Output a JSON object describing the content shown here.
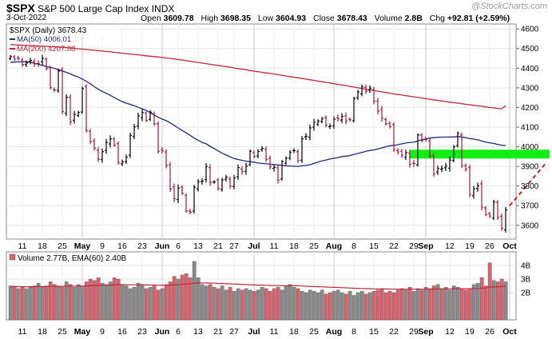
{
  "header": {
    "symbol": "$SPX",
    "name": "S&P 500 Large Cap Index",
    "exchange": "INDX",
    "date": "3-Oct-2022",
    "open_label": "Open",
    "open": "3609.78",
    "high_label": "High",
    "high": "3698.35",
    "low_label": "Low",
    "low": "3604.93",
    "close_label": "Close",
    "close": "3678.43",
    "volume_label": "Volume",
    "volume": "2.8B",
    "chg_label": "Chg",
    "chg": "+92.81 (+2.59%)",
    "watermark": "@StockCharts.com"
  },
  "legend": {
    "price": "$SPX (Daily) 3678.43",
    "ma50": "MA(50) 4006.01",
    "ma200": "MA(200) 4207.88",
    "volume": "Volume 2.77B, EMA(60) 2.40B"
  },
  "chart_data": {
    "type": "ohlc",
    "colors": {
      "up": "#000000",
      "down": "#a8163c",
      "ma50": "#1f2a80",
      "ma200": "#c0263a",
      "vol_up": "#8a8a8a",
      "vol_down": "#d9626e",
      "support": "#11ee11",
      "trend": "#e8141e"
    },
    "price_axis": {
      "min": 3530,
      "max": 4625,
      "ticks": [
        3600,
        3700,
        3800,
        3900,
        4000,
        4100,
        4200,
        4300,
        4400,
        4500,
        4600
      ]
    },
    "volume_axis": {
      "min": 0,
      "max": 5,
      "ticks": [
        "2B",
        "3B",
        "4B"
      ],
      "tick_values": [
        2,
        3,
        4
      ]
    },
    "x_labels": [
      {
        "label": "11",
        "i": 3
      },
      {
        "label": "18",
        "i": 8
      },
      {
        "label": "25",
        "i": 13
      },
      {
        "label": "May",
        "i": 18,
        "bold": true
      },
      {
        "label": "9",
        "i": 23
      },
      {
        "label": "16",
        "i": 28
      },
      {
        "label": "23",
        "i": 33
      },
      {
        "label": "Jun",
        "i": 38,
        "bold": true
      },
      {
        "label": "6",
        "i": 42
      },
      {
        "label": "13",
        "i": 47
      },
      {
        "label": "21",
        "i": 52
      },
      {
        "label": "27",
        "i": 56
      },
      {
        "label": "Jul",
        "i": 61,
        "bold": true
      },
      {
        "label": "11",
        "i": 66
      },
      {
        "label": "18",
        "i": 71
      },
      {
        "label": "25",
        "i": 76
      },
      {
        "label": "Aug",
        "i": 81,
        "bold": true
      },
      {
        "label": "8",
        "i": 86
      },
      {
        "label": "15",
        "i": 91
      },
      {
        "label": "22",
        "i": 96
      },
      {
        "label": "29",
        "i": 101
      },
      {
        "label": "Sep",
        "i": 104,
        "bold": true
      },
      {
        "label": "12",
        "i": 110
      },
      {
        "label": "19",
        "i": 115
      },
      {
        "label": "26",
        "i": 120
      },
      {
        "label": "Oct",
        "i": 125,
        "bold": true
      }
    ],
    "close": [
      4459,
      4446,
      4449,
      4419,
      4426,
      4439,
      4422,
      4423,
      4450,
      4398,
      4301,
      4289,
      4385,
      4179,
      4252,
      4127,
      4165,
      4175,
      4297,
      4083,
      4026,
      3993,
      3936,
      3975,
      4022,
      4040,
      4008,
      3919,
      3923,
      3947,
      4057,
      4101,
      4157,
      4174,
      4134,
      4176,
      4117,
      3977,
      3979,
      3905,
      3786,
      3735,
      3790,
      3763,
      3674,
      3667,
      3794,
      3822,
      3825,
      3900,
      3818,
      3821,
      3786,
      3831,
      3845,
      3800,
      3841,
      3894,
      3875,
      3901,
      3977,
      3951,
      3976,
      3991,
      3936,
      3900,
      3895,
      3830,
      3924,
      3942,
      3972,
      3980,
      3930,
      4040,
      4053,
      4096,
      4124,
      4131,
      4142,
      4110,
      4106,
      4140,
      4142,
      4155,
      4131,
      4137,
      4245,
      4279,
      4305,
      4283,
      4298,
      4232,
      4182,
      4145,
      4117,
      4103,
      3985,
      3973,
      3957,
      3970,
      3910,
      3915,
      4060,
      4032,
      4036,
      3952,
      3861,
      3890,
      3889,
      3901,
      3932,
      4000,
      4068,
      3903,
      3886,
      3757,
      3785,
      3801,
      3693,
      3655,
      3647,
      3719,
      3640,
      3585,
      3678
    ],
    "ohlc_order": "open, high, low, close per bar",
    "ma50": [
      4430,
      4431,
      4432,
      4432,
      4433,
      4430,
      4425,
      4420,
      4414,
      4408,
      4404,
      4399,
      4393,
      4385,
      4379,
      4371,
      4362,
      4355,
      4345,
      4333,
      4321,
      4306,
      4293,
      4282,
      4272,
      4262,
      4251,
      4240,
      4229,
      4222,
      4216,
      4209,
      4201,
      4193,
      4185,
      4174,
      4161,
      4150,
      4141,
      4133,
      4122,
      4109,
      4096,
      4083,
      4071,
      4058,
      4044,
      4033,
      4022,
      4015,
      4002,
      3991,
      3979,
      3967,
      3958,
      3949,
      3940,
      3935,
      3931,
      3927,
      3924,
      3921,
      3917,
      3915,
      3913,
      3911,
      3909,
      3908,
      3905,
      3903,
      3902,
      3901,
      3900,
      3903,
      3905,
      3908,
      3915,
      3922,
      3928,
      3932,
      3938,
      3941,
      3945,
      3950,
      3952,
      3955,
      3961,
      3966,
      3971,
      3977,
      3981,
      3984,
      3989,
      3994,
      4000,
      4005,
      4007,
      4010,
      4015,
      4019,
      4022,
      4023,
      4029,
      4035,
      4040,
      4044,
      4046,
      4048,
      4049,
      4049,
      4050,
      4050,
      4052,
      4050,
      4046,
      4042,
      4039,
      4035,
      4029,
      4024,
      4020,
      4017,
      4012,
      4008,
      4006
    ],
    "ma200": [
      4520,
      4519,
      4518,
      4517,
      4516,
      4515,
      4514,
      4513,
      4512,
      4511,
      4510,
      4509,
      4508,
      4506,
      4505,
      4503,
      4501,
      4499,
      4497,
      4495,
      4493,
      4491,
      4489,
      4487,
      4485,
      4483,
      4481,
      4479,
      4476,
      4474,
      4472,
      4470,
      4468,
      4466,
      4463,
      4461,
      4459,
      4457,
      4455,
      4452,
      4450,
      4447,
      4444,
      4441,
      4438,
      4435,
      4432,
      4429,
      4426,
      4423,
      4420,
      4417,
      4414,
      4411,
      4408,
      4405,
      4401,
      4398,
      4395,
      4392,
      4388,
      4385,
      4382,
      4379,
      4376,
      4373,
      4370,
      4367,
      4364,
      4360,
      4357,
      4354,
      4351,
      4348,
      4344,
      4341,
      4338,
      4334,
      4331,
      4328,
      4325,
      4321,
      4318,
      4314,
      4311,
      4307,
      4304,
      4300,
      4297,
      4293,
      4290,
      4286,
      4283,
      4279,
      4276,
      4273,
      4269,
      4266,
      4263,
      4260,
      4257,
      4254,
      4251,
      4248,
      4245,
      4242,
      4239,
      4236,
      4233,
      4230,
      4227,
      4224,
      4222,
      4219,
      4216,
      4214,
      4211,
      4208,
      4206,
      4203,
      4200,
      4198,
      4195,
      4193,
      4208
    ],
    "volume_b": [
      2.5,
      2.4,
      2.3,
      2.4,
      2.3,
      2.4,
      2.5,
      2.7,
      2.4,
      2.5,
      2.8,
      2.6,
      2.5,
      2.4,
      2.8,
      2.6,
      2.4,
      2.6,
      2.5,
      2.8,
      3.0,
      2.9,
      3.1,
      2.7,
      2.6,
      2.8,
      3.1,
      3.0,
      2.6,
      2.5,
      2.3,
      2.4,
      2.7,
      2.6,
      2.3,
      2.4,
      2.5,
      2.2,
      2.3,
      2.6,
      2.8,
      3.2,
      3.0,
      3.3,
      3.4,
      3.1,
      4.3,
      3.1,
      2.6,
      2.5,
      2.6,
      2.4,
      2.3,
      2.5,
      2.2,
      2.4,
      2.1,
      2.3,
      2.2,
      2.3,
      2.2,
      2.1,
      2.2,
      2.4,
      2.3,
      2.1,
      2.3,
      2.4,
      2.2,
      2.5,
      2.6,
      2.4,
      2.3,
      2.1,
      2.0,
      2.2,
      2.1,
      2.0,
      2.2,
      1.9,
      2.0,
      2.1,
      2.2,
      2.0,
      1.9,
      2.1,
      1.8,
      2.0,
      2.1,
      1.9,
      2.0,
      2.1,
      2.2,
      2.3,
      2.0,
      2.1,
      2.0,
      2.2,
      2.3,
      2.2,
      2.4,
      2.1,
      2.3,
      2.2,
      2.4,
      2.3,
      2.5,
      2.6,
      2.3,
      2.4,
      2.2,
      2.5,
      2.4,
      2.3,
      2.2,
      2.3,
      2.6,
      2.7,
      3.1,
      2.5,
      4.2,
      2.9,
      2.8,
      3.0,
      2.8
    ],
    "support_zone": {
      "from_i": 100,
      "to_i": 135,
      "low": 3940,
      "high": 3985
    },
    "trend_line": {
      "from_i": 125,
      "from_price": 3700,
      "to_i": 134,
      "to_price": 3915
    }
  }
}
